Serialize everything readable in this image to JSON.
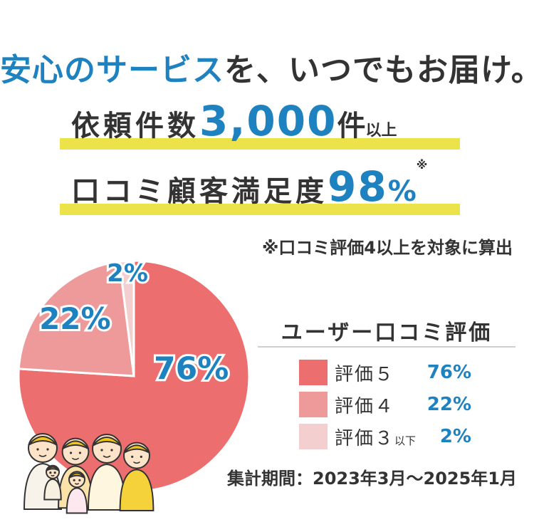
{
  "headline": {
    "part1": "安心のサービス",
    "part2": "を、いつでもお届け。"
  },
  "stat1": {
    "label": "依頼件数",
    "value": "3,000",
    "unit": "件",
    "suffix": "以上"
  },
  "stat2": {
    "label": "口コミ顧客満足度",
    "value": "98",
    "unit": "%",
    "note_mark": "※"
  },
  "footnote": "※口コミ評価4以上を対象に算出",
  "legend": {
    "title": "ユーザー口コミ評価",
    "items": [
      {
        "label": "評価５",
        "suffix": "",
        "value": "76%"
      },
      {
        "label": "評価４",
        "suffix": "",
        "value": "22%"
      },
      {
        "label": "評価３",
        "suffix": "以下",
        "value": "2%"
      }
    ]
  },
  "period": "集計期間：2023年3月〜2025年1月",
  "colors": {
    "accent_blue": "#1f82c0",
    "highlight": "#ece24a",
    "slice5": "#ec6e6e",
    "slice4": "#ee9a9a",
    "slice3": "#f4cfcf"
  },
  "chart_data": {
    "type": "pie",
    "title": "ユーザー口コミ評価",
    "categories": [
      "評価５",
      "評価４",
      "評価３以下"
    ],
    "values": [
      76,
      22,
      2
    ],
    "data_labels": [
      "76%",
      "22%",
      "2%"
    ]
  }
}
